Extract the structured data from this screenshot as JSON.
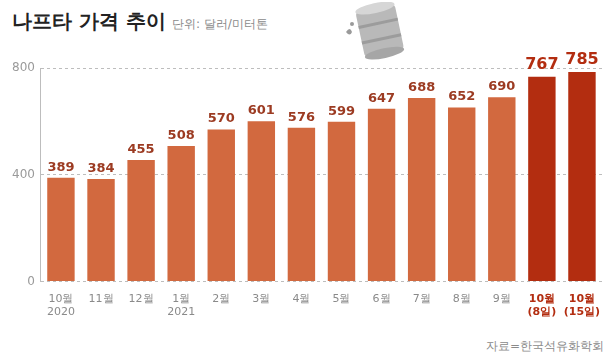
{
  "chart_data": {
    "type": "bar",
    "title": "나프타 가격 추이",
    "subtitle": "단위: 달러/미터톤",
    "categories": [
      [
        "10월",
        "2020"
      ],
      "11월",
      "12월",
      [
        "1월",
        "2021"
      ],
      "2월",
      "3월",
      "4월",
      "5월",
      "6월",
      "7월",
      "8월",
      "9월",
      [
        "10월",
        "(8일)"
      ],
      [
        "10월",
        "(15일)"
      ]
    ],
    "values": [
      389,
      384,
      455,
      508,
      570,
      601,
      576,
      599,
      647,
      688,
      652,
      690,
      767,
      785
    ],
    "colors": [
      "#d2693f",
      "#d2693f",
      "#d2693f",
      "#d2693f",
      "#d2693f",
      "#d2693f",
      "#d2693f",
      "#d2693f",
      "#d2693f",
      "#d2693f",
      "#d2693f",
      "#d2693f",
      "#b32d10",
      "#b32d10"
    ],
    "ylim": [
      0,
      800
    ],
    "yticks": [
      0,
      400,
      800
    ],
    "grid": true,
    "data_labels": true,
    "source": "자료=한국석유화학회"
  }
}
